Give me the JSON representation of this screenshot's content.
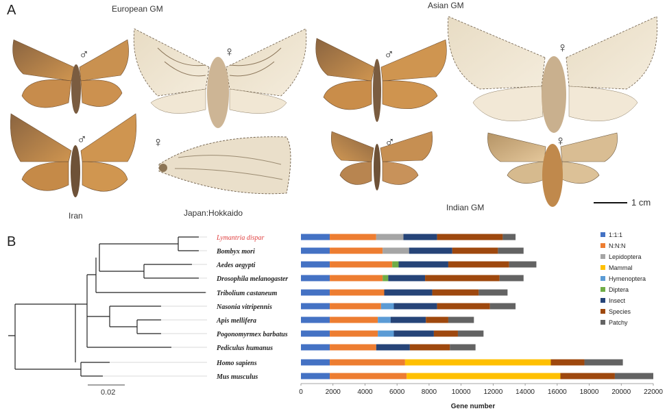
{
  "panel_a": {
    "letter": "A",
    "groups": {
      "european": "European GM",
      "asian": "Asian GM",
      "indian": "Indian GM"
    },
    "places": {
      "iran": "Iran",
      "japan": "Japan:Hokkaido"
    },
    "scale_bar": "1 cm",
    "male_symbol": "♂",
    "female_symbol": "♀",
    "colors": {
      "wing_brown": "#b07a3f",
      "wing_light": "#eadfc8",
      "wing_spot": "#5c4026"
    }
  },
  "panel_b": {
    "letter": "B",
    "tree_scale_label": "0.02",
    "highlight_color": "#e04040",
    "species": [
      "Lymantria dispar",
      "Bombyx mori",
      "Aedes aegypti",
      "Drosophila melanogaster",
      "Tribolium castaneum",
      "Nasonia vitripennis",
      "Apis mellifera",
      "Pogonomyrmex barbatus",
      "Pediculus humanus",
      "Homo sapiens",
      "Mus musculus"
    ]
  },
  "chart_data": {
    "type": "bar",
    "orientation": "horizontal",
    "stacked": true,
    "categories": [
      "Lymantria dispar",
      "Bombyx mori",
      "Aedes aegypti",
      "Drosophila melanogaster",
      "Tribolium castaneum",
      "Nasonia vitripennis",
      "Apis mellifera",
      "Pogonomyrmex barbatus",
      "Pediculus humanus",
      "Homo sapiens",
      "Mus musculus"
    ],
    "xlabel": "Gene number",
    "xlim": [
      0,
      22000
    ],
    "xticks": [
      0,
      2000,
      4000,
      6000,
      8000,
      10000,
      12000,
      14000,
      16000,
      18000,
      20000,
      22000
    ],
    "legend_position": "right",
    "series": [
      {
        "name": "1:1:1",
        "color": "#4472c4",
        "values": [
          1800,
          1800,
          1800,
          1800,
          1800,
          1800,
          1800,
          1800,
          1800,
          1800,
          1800
        ]
      },
      {
        "name": "N:N:N",
        "color": "#ed7d31",
        "values": [
          2900,
          3300,
          3900,
          3300,
          3400,
          3200,
          3000,
          3000,
          2900,
          4700,
          4800
        ]
      },
      {
        "name": "Lepidoptera",
        "color": "#a5a5a5",
        "values": [
          1700,
          1650,
          0,
          0,
          0,
          0,
          0,
          0,
          0,
          0,
          0
        ]
      },
      {
        "name": "Mammal",
        "color": "#ffc000",
        "values": [
          0,
          0,
          0,
          0,
          0,
          0,
          0,
          0,
          0,
          9100,
          9600
        ]
      },
      {
        "name": "Hymenoptera",
        "color": "#5b9bd5",
        "values": [
          0,
          0,
          0,
          0,
          0,
          800,
          800,
          1000,
          0,
          0,
          0
        ]
      },
      {
        "name": "Diptera",
        "color": "#70ad47",
        "values": [
          0,
          0,
          400,
          350,
          0,
          0,
          0,
          0,
          0,
          0,
          0
        ]
      },
      {
        "name": "Insect",
        "color": "#264478",
        "values": [
          2100,
          2700,
          3100,
          2300,
          3000,
          2700,
          2200,
          2500,
          2100,
          0,
          0
        ]
      },
      {
        "name": "Species",
        "color": "#9e480e",
        "values": [
          4100,
          2850,
          3800,
          4650,
          2900,
          3300,
          1400,
          1500,
          2500,
          2100,
          3400
        ]
      },
      {
        "name": "Patchy",
        "color": "#636363",
        "values": [
          800,
          1600,
          1700,
          1500,
          1800,
          1600,
          1600,
          1600,
          1600,
          2400,
          2400
        ]
      }
    ]
  }
}
